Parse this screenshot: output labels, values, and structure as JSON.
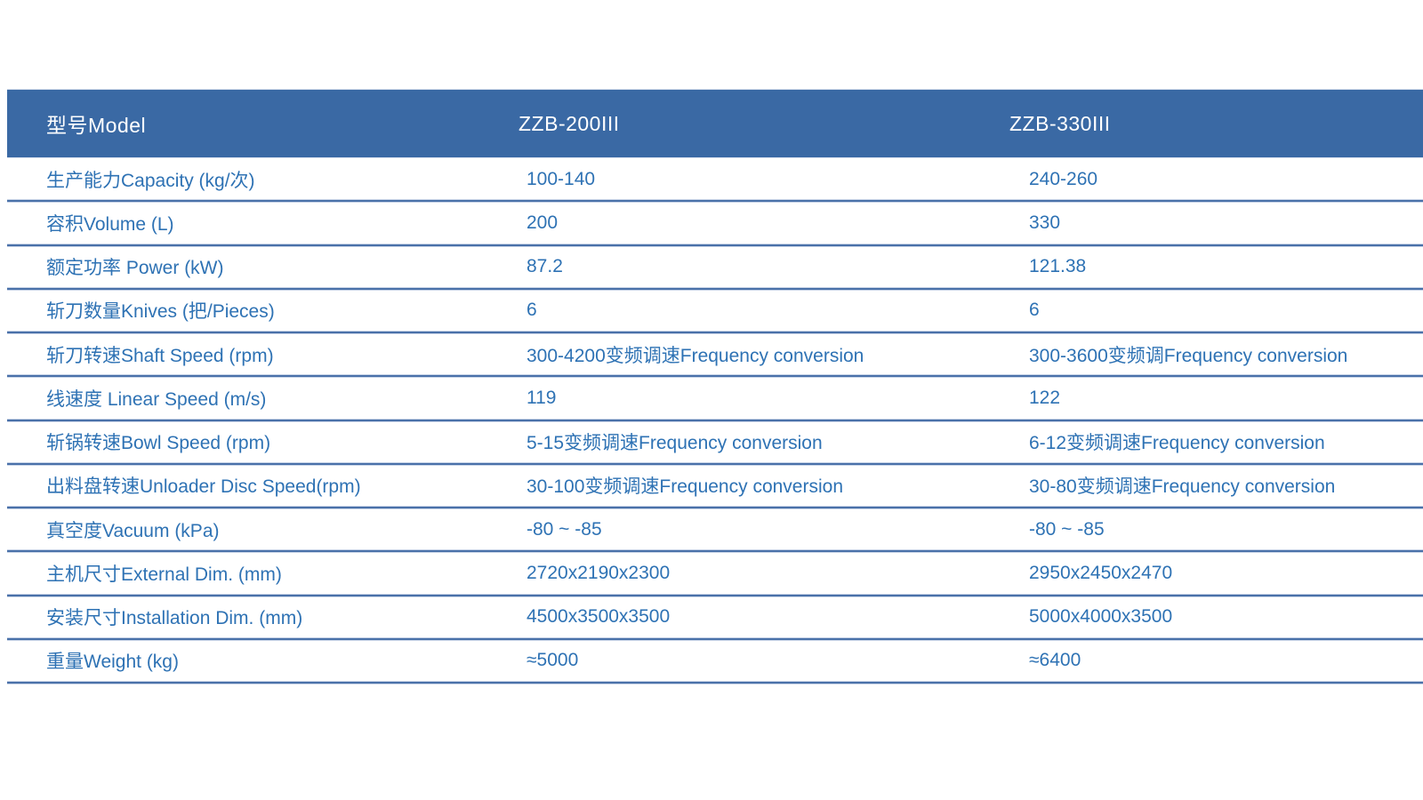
{
  "colors": {
    "header_bg": "#3a69a4",
    "header_text": "#ffffff",
    "body_text": "#2e72b4",
    "line_dark": "#4a71a9",
    "line_light": "#c6d2e6",
    "page_bg": "#ffffff"
  },
  "table": {
    "header": {
      "model_label": "型号Model",
      "model_1": "ZZB-200III",
      "model_2": "ZZB-330III"
    },
    "rows": [
      {
        "label": "生产能力Capacity (kg/次)",
        "zzb_200": "100-140",
        "zzb_330": "240-260"
      },
      {
        "label": "容积Volume (L)",
        "zzb_200": "200",
        "zzb_330": "330"
      },
      {
        "label": "额定功率 Power (kW)",
        "zzb_200": "87.2",
        "zzb_330": "121.38"
      },
      {
        "label": "斩刀数量Knives (把/Pieces)",
        "zzb_200": "6",
        "zzb_330": "6"
      },
      {
        "label": "斩刀转速Shaft Speed (rpm)",
        "zzb_200": "300-4200变频调速Frequency conversion",
        "zzb_330": "300-3600变频调Frequency conversion"
      },
      {
        "label": "线速度 Linear Speed (m/s)",
        "zzb_200": "119",
        "zzb_330": "122"
      },
      {
        "label": "斩锅转速Bowl Speed (rpm)",
        "zzb_200": "5-15变频调速Frequency conversion",
        "zzb_330": "6-12变频调速Frequency conversion"
      },
      {
        "label": "出料盘转速Unloader Disc Speed(rpm)",
        "zzb_200": "30-100变频调速Frequency conversion",
        "zzb_330": "30-80变频调速Frequency conversion"
      },
      {
        "label": "真空度Vacuum (kPa)",
        "zzb_200": "-80 ~ -85",
        "zzb_330": "-80 ~ -85"
      },
      {
        "label": "主机尺寸External Dim. (mm)",
        "zzb_200": "2720x2190x2300",
        "zzb_330": "2950x2450x2470"
      },
      {
        "label": "安装尺寸Installation Dim. (mm)",
        "zzb_200": "4500x3500x3500",
        "zzb_330": "5000x4000x3500"
      },
      {
        "label": "重量Weight (kg)",
        "zzb_200": "≈5000",
        "zzb_330": "≈6400"
      }
    ]
  }
}
